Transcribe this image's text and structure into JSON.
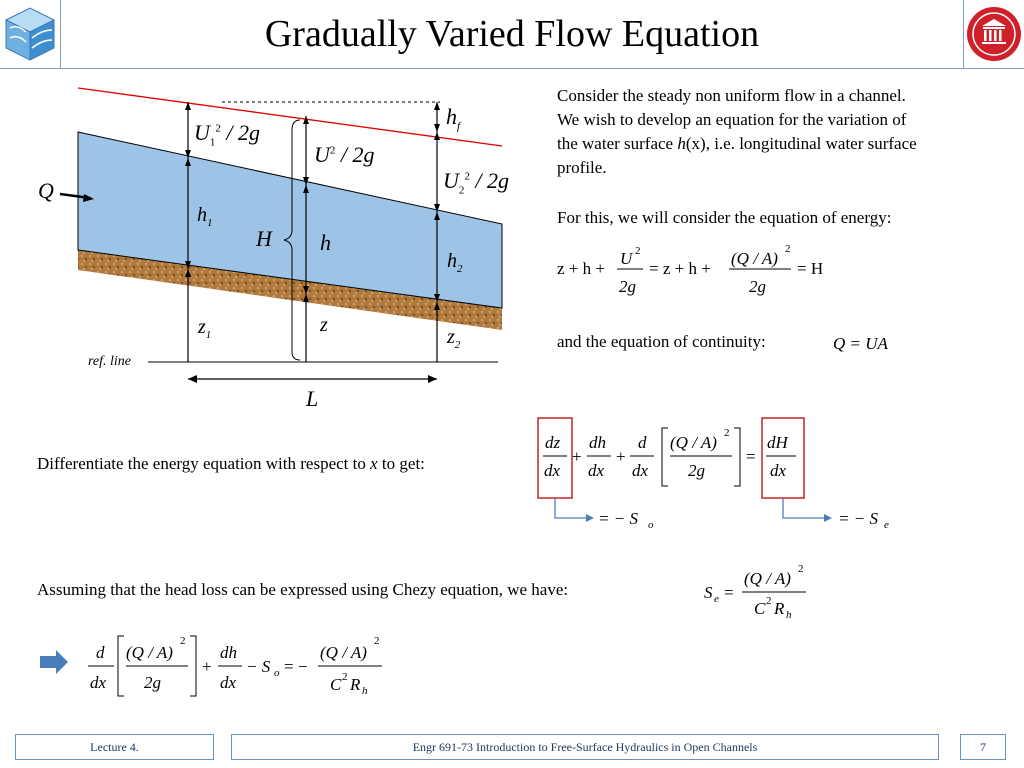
{
  "title": "Gradually Varied Flow Equation",
  "text": {
    "intro_1": "Consider the steady non uniform flow in a channel.",
    "intro_2": "We wish to develop an equation for the variation of",
    "intro_3_pre": "the water surface ",
    "intro_3_h": "h",
    "intro_3_x": "(x)",
    "intro_3_post": ", i.e. longitudinal water surface",
    "intro_4": "profile.",
    "energy_intro": "For this, we will consider the equation of energy:",
    "continuity": "and the equation of continuity:",
    "diff_pre": "Differentiate the energy equation with respect to ",
    "diff_x": "x",
    "diff_post": " to get:",
    "chezy": "Assuming that the head loss can be expressed using Chezy equation, we have:"
  },
  "diagram": {
    "Q": "Q",
    "hf": "h",
    "hf_sub": "f",
    "U1": "U",
    "U1_sub": "1",
    "U_sup": "2",
    "over_2g": "/ 2g",
    "U": "U",
    "U2": "U",
    "U2_sub": "2",
    "h1": "h",
    "h1_sub": "1",
    "H": "H",
    "h": "h",
    "h2": "h",
    "h2_sub": "2",
    "z1": "z",
    "z1_sub": "1",
    "z": "z",
    "z2": "z",
    "z2_sub": "2",
    "ref_line": "ref. line",
    "L": "L"
  },
  "equations": {
    "energy_lhs": "z + h +",
    "energy_mid": "= z + h +",
    "energy_rhs": "= H",
    "U": "U",
    "sup2": "2",
    "two_g": "2g",
    "QA": "(Q / A)",
    "continuity": "Q = UA",
    "dz": "dz",
    "dx": "dx",
    "dh": "dh",
    "d": "d",
    "dH": "dH",
    "plus": "+",
    "eq": "=",
    "eq_minus_So": "= − S",
    "So_sub": "o",
    "eq_minus_Se": "= − S",
    "Se_sub": "e",
    "Se": "S",
    "C2Rh": "C",
    "Rh": "R",
    "Rh_sub": "h",
    "minus_So": "− S",
    "eq_minus": "= −"
  },
  "footer": {
    "lecture": "Lecture 4.",
    "course": "Engr 691-73 Introduction to Free-Surface Hydraulics in Open Channels",
    "page": "7"
  },
  "colors": {
    "water": "#9dc3e6",
    "water_edge": "#000000",
    "energy_line": "#e00000",
    "soil": "#b07a3e",
    "highlight_box": "#c00000",
    "arrow_blue": "#4a7ebb",
    "footer_border": "#6b8fc7"
  },
  "icons": {
    "left_logo": "channel-block-icon",
    "right_logo": "university-seal-icon",
    "result_arrow": "right-arrow-icon"
  }
}
